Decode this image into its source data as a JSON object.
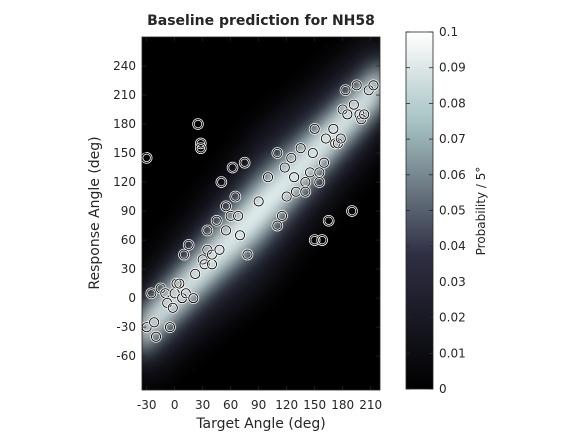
{
  "chart_data": {
    "type": "heatmap",
    "title": "Baseline prediction for NH58",
    "xlabel": "Target Angle (deg)",
    "ylabel": "Response Angle (deg)",
    "xlim": [
      -35,
      220
    ],
    "ylim": [
      -95,
      270
    ],
    "xticks": [
      -30,
      0,
      30,
      60,
      90,
      120,
      150,
      180,
      210
    ],
    "yticks": [
      -60,
      -30,
      0,
      30,
      60,
      90,
      120,
      150,
      180,
      210,
      240
    ],
    "colorbar": {
      "label": "Probability / 5°",
      "clim": [
        0,
        0.1
      ],
      "ticks": [
        0,
        0.01,
        0.02,
        0.03,
        0.04,
        0.05,
        0.06,
        0.07,
        0.08,
        0.09,
        0.1
      ],
      "tick_labels": [
        "0",
        "0.01",
        "0.02",
        "0.03",
        "0.04",
        "0.05",
        "0.06",
        "0.07",
        "0.08",
        "0.09",
        "0.1"
      ],
      "colormap": "bone"
    },
    "prediction_band": {
      "center_line_slope": 1.0,
      "center_line_intercept": 0,
      "note_type": "diagonal probability ridge"
    },
    "grid": false,
    "markers": "open circles",
    "points": [
      [
        -30,
        145
      ],
      [
        -30,
        -30
      ],
      [
        -25,
        5
      ],
      [
        -22,
        -25
      ],
      [
        -20,
        -40
      ],
      [
        -15,
        10
      ],
      [
        -10,
        5
      ],
      [
        -8,
        -5
      ],
      [
        -5,
        -30
      ],
      [
        -2,
        -10
      ],
      [
        0,
        5
      ],
      [
        2,
        15
      ],
      [
        5,
        15
      ],
      [
        8,
        0
      ],
      [
        10,
        45
      ],
      [
        12,
        5
      ],
      [
        15,
        55
      ],
      [
        20,
        0
      ],
      [
        22,
        25
      ],
      [
        25,
        180
      ],
      [
        28,
        160
      ],
      [
        28,
        155
      ],
      [
        30,
        40
      ],
      [
        32,
        35
      ],
      [
        35,
        70
      ],
      [
        35,
        50
      ],
      [
        40,
        35
      ],
      [
        40,
        45
      ],
      [
        45,
        80
      ],
      [
        48,
        50
      ],
      [
        50,
        120
      ],
      [
        55,
        95
      ],
      [
        55,
        70
      ],
      [
        60,
        85
      ],
      [
        62,
        135
      ],
      [
        65,
        105
      ],
      [
        68,
        85
      ],
      [
        70,
        65
      ],
      [
        75,
        140
      ],
      [
        78,
        45
      ],
      [
        90,
        100
      ],
      [
        100,
        125
      ],
      [
        110,
        75
      ],
      [
        110,
        150
      ],
      [
        115,
        85
      ],
      [
        118,
        135
      ],
      [
        120,
        105
      ],
      [
        125,
        145
      ],
      [
        128,
        125
      ],
      [
        130,
        110
      ],
      [
        135,
        155
      ],
      [
        140,
        120
      ],
      [
        140,
        110
      ],
      [
        145,
        130
      ],
      [
        148,
        150
      ],
      [
        150,
        175
      ],
      [
        150,
        60
      ],
      [
        155,
        130
      ],
      [
        155,
        120
      ],
      [
        158,
        60
      ],
      [
        160,
        140
      ],
      [
        162,
        165
      ],
      [
        165,
        80
      ],
      [
        170,
        175
      ],
      [
        172,
        160
      ],
      [
        175,
        160
      ],
      [
        178,
        165
      ],
      [
        180,
        195
      ],
      [
        183,
        215
      ],
      [
        185,
        190
      ],
      [
        190,
        90
      ],
      [
        192,
        200
      ],
      [
        195,
        220
      ],
      [
        198,
        190
      ],
      [
        200,
        185
      ],
      [
        203,
        190
      ],
      [
        208,
        215
      ],
      [
        213,
        220
      ]
    ]
  }
}
